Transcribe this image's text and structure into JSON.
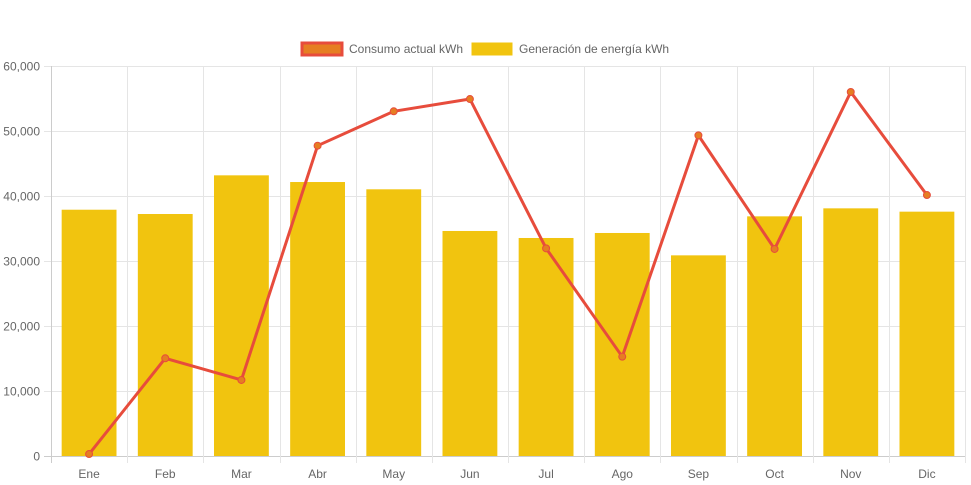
{
  "chart_data": {
    "type": "bar",
    "title": "",
    "xlabel": "",
    "ylabel": "",
    "ylim": [
      0,
      60000
    ],
    "yticks": [
      0,
      10000,
      20000,
      30000,
      40000,
      50000,
      60000
    ],
    "ytick_labels": [
      "0",
      "10,000",
      "20,000",
      "30,000",
      "40,000",
      "50,000",
      "60,000"
    ],
    "grid": true,
    "legend_position": "top",
    "categories": [
      "Ene",
      "Feb",
      "Mar",
      "Abr",
      "May",
      "Jun",
      "Jul",
      "Ago",
      "Sep",
      "Oct",
      "Nov",
      "Dic"
    ],
    "series": [
      {
        "name": "Consumo actual kWh",
        "type": "line",
        "color": "#e74c3c",
        "point_color": "#e67e22",
        "values": [
          300,
          15030,
          11700,
          47740,
          53030,
          54920,
          31950,
          15280,
          49330,
          31850,
          56000,
          40150
        ]
      },
      {
        "name": "Generación de energía kWh",
        "type": "bar",
        "color": "#f1c40f",
        "values": [
          37890,
          37230,
          43180,
          42150,
          41030,
          34620,
          33540,
          34310,
          30870,
          36870,
          38100,
          37590
        ]
      }
    ]
  }
}
